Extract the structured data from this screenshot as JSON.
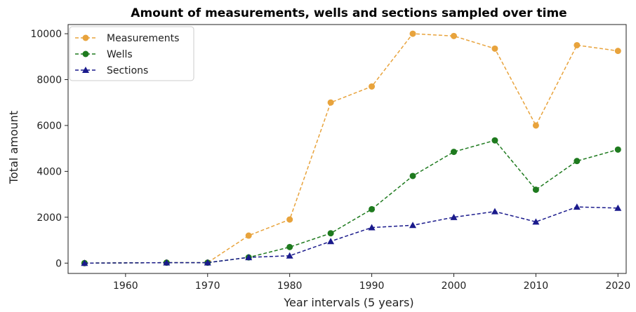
{
  "chart_data": {
    "type": "line",
    "title": "Amount of measurements, wells and sections sampled over time",
    "xlabel": "Year intervals (5 years)",
    "ylabel": "Total amount",
    "x": [
      1955,
      1965,
      1970,
      1975,
      1980,
      1985,
      1990,
      1995,
      2000,
      2005,
      2010,
      2015,
      2020
    ],
    "xlim": [
      1953,
      2021
    ],
    "ylim": [
      -450,
      10400
    ],
    "xticks": [
      1960,
      1970,
      1980,
      1990,
      2000,
      2010,
      2020
    ],
    "yticks": [
      0,
      2000,
      4000,
      6000,
      8000,
      10000
    ],
    "grid": false,
    "legend_position": "top-left",
    "series": [
      {
        "name": "Measurements",
        "color": "#E8A33C",
        "marker": "circle",
        "linestyle": "dashed",
        "values": [
          0,
          20,
          20,
          1200,
          1900,
          7000,
          7700,
          10000,
          9900,
          9350,
          6000,
          9500,
          9250
        ]
      },
      {
        "name": "Wells",
        "color": "#1E7A1E",
        "marker": "circle",
        "linestyle": "dashed",
        "values": [
          0,
          20,
          20,
          250,
          700,
          1300,
          2350,
          3800,
          4850,
          5350,
          3200,
          4450,
          4950
        ]
      },
      {
        "name": "Sections",
        "color": "#1A1A8C",
        "marker": "triangle",
        "linestyle": "dashed",
        "values": [
          0,
          20,
          20,
          250,
          320,
          950,
          1550,
          1650,
          2000,
          2250,
          1800,
          2450,
          2400
        ]
      }
    ]
  }
}
